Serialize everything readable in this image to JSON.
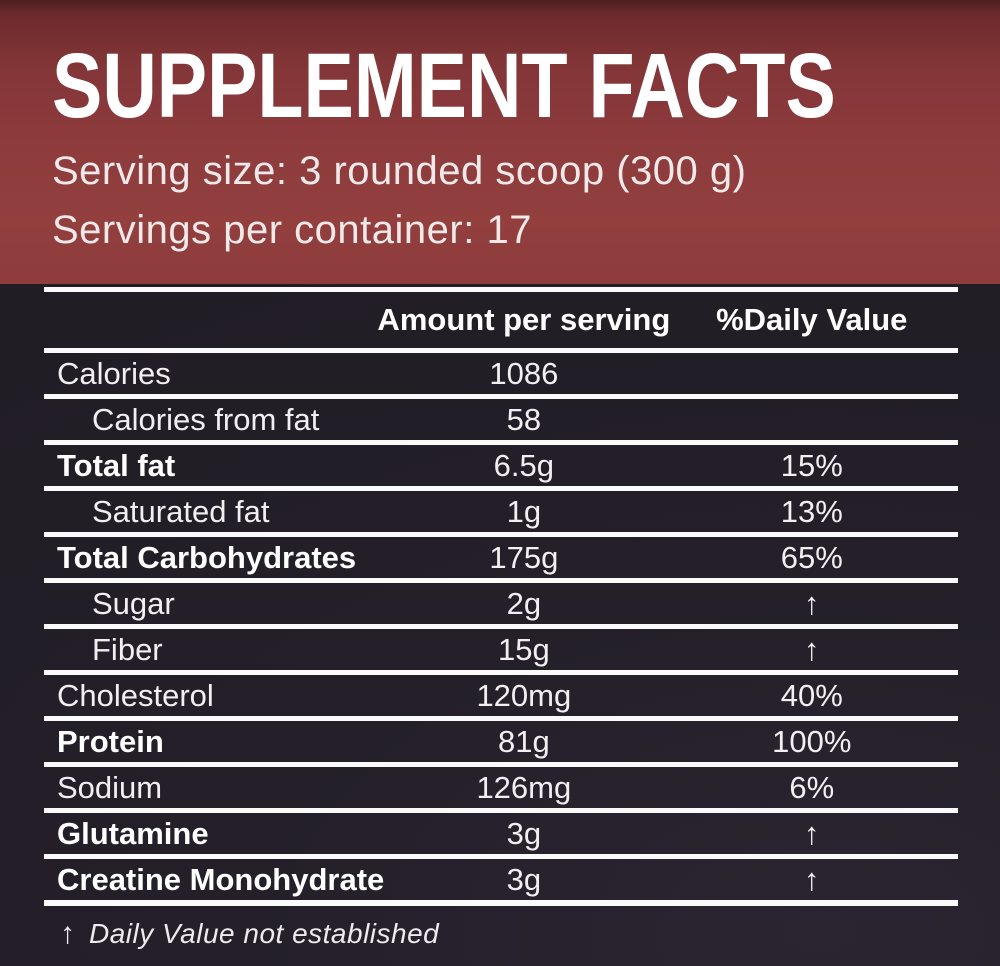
{
  "colors": {
    "header_bg": "#8c3a3c",
    "body_bg": "#241f29",
    "rule": "#fbfafa",
    "text": "#ffffff"
  },
  "header": {
    "title": "SUPPLEMENT FACTS",
    "serving_size": "Serving size: 3 rounded scoop (300 g)",
    "servings_per_container": "Servings per container: 17"
  },
  "table": {
    "columns": {
      "amount": "Amount per serving",
      "daily_value": "%Daily Value"
    },
    "rows": [
      {
        "name": "Calories",
        "amount": "1086",
        "daily_value": ""
      },
      {
        "name": "Calories from fat",
        "amount": "58",
        "daily_value": ""
      },
      {
        "name": "Total fat",
        "amount": "6.5g",
        "daily_value": "15%"
      },
      {
        "name": "Saturated fat",
        "amount": "1g",
        "daily_value": "13%"
      },
      {
        "name": "Total Carbohydrates",
        "amount": "175g",
        "daily_value": "65%"
      },
      {
        "name": "Sugar",
        "amount": "2g",
        "daily_value": "↑"
      },
      {
        "name": "Fiber",
        "amount": "15g",
        "daily_value": "↑"
      },
      {
        "name": "Cholesterol",
        "amount": "120mg",
        "daily_value": "40%"
      },
      {
        "name": "Protein",
        "amount": "81g",
        "daily_value": "100%"
      },
      {
        "name": "Sodium",
        "amount": "126mg",
        "daily_value": "6%"
      },
      {
        "name": "Glutamine",
        "amount": "3g",
        "daily_value": "↑"
      },
      {
        "name": "Creatine Monohydrate",
        "amount": "3g",
        "daily_value": "↑"
      }
    ],
    "footnote": {
      "symbol": "↑",
      "text": "Daily Value not established"
    }
  }
}
